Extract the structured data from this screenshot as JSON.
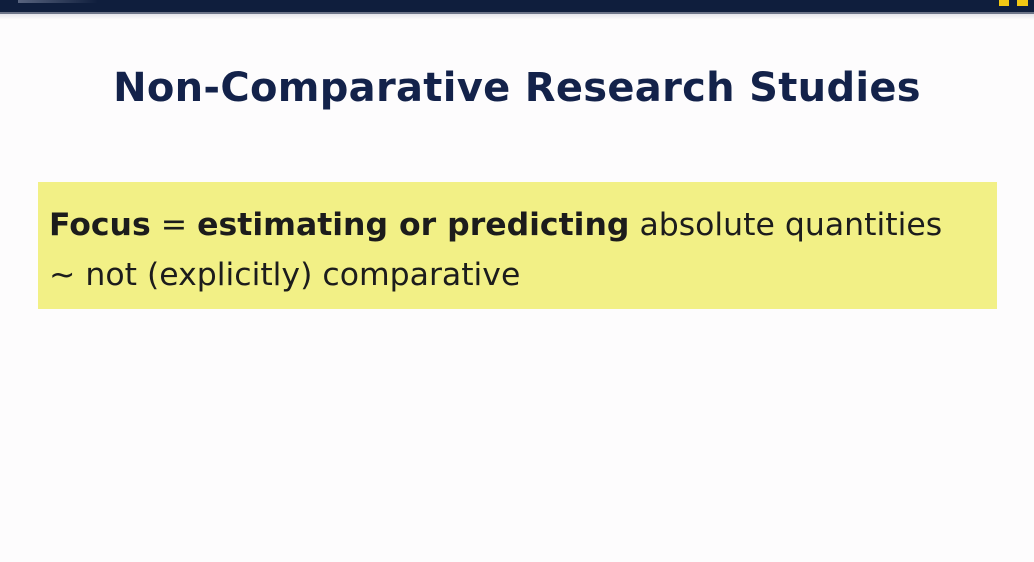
{
  "slide": {
    "title": "Non-Comparative Research Studies",
    "focus_term": "Focus",
    "equals": " = ",
    "focus_bold": "estimating or predicting",
    "focus_rest": " absolute quantities",
    "second_line": "~ not (explicitly) comparative"
  },
  "colors": {
    "header_bar": "#0f1e3d",
    "accent": "#f2c814",
    "title": "#13224a",
    "highlight": "#f2f086"
  }
}
